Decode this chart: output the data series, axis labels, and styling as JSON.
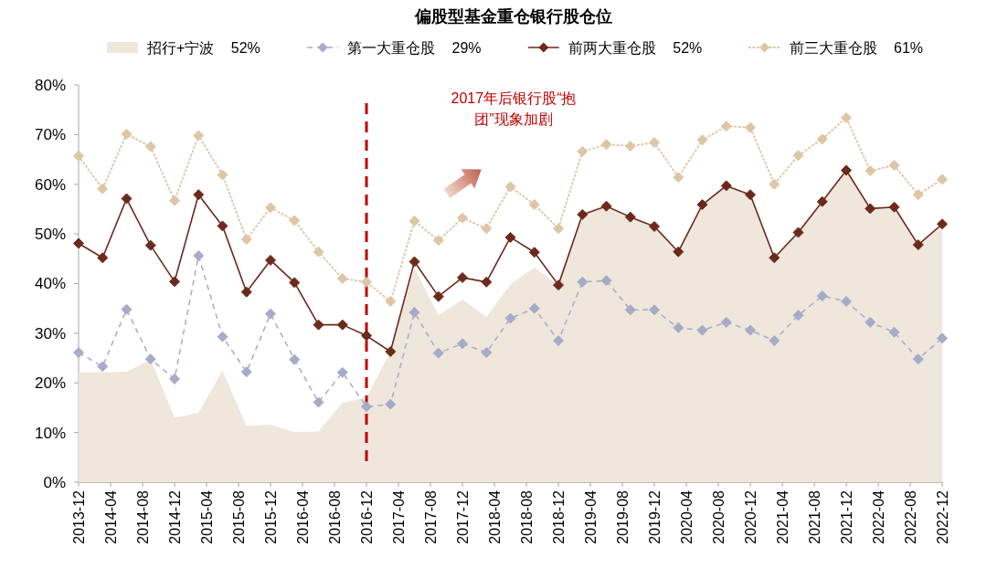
{
  "chart_data": {
    "type": "line",
    "title": "偏股型基金重仓银行股仓位",
    "x": [
      "2013-12",
      "2014-03",
      "2014-06",
      "2014-09",
      "2014-12",
      "2015-03",
      "2015-06",
      "2015-09",
      "2015-12",
      "2016-03",
      "2016-06",
      "2016-09",
      "2016-12",
      "2017-03",
      "2017-06",
      "2017-09",
      "2017-12",
      "2018-03",
      "2018-06",
      "2018-09",
      "2018-12",
      "2019-03",
      "2019-06",
      "2019-09",
      "2019-12",
      "2020-03",
      "2020-06",
      "2020-09",
      "2020-12",
      "2021-03",
      "2021-06",
      "2021-09",
      "2021-12",
      "2022-03",
      "2022-06",
      "2022-09",
      "2022-12"
    ],
    "series": [
      {
        "name": "招行+宁波 52%",
        "type": "area",
        "color": "#efe6dc",
        "values": [
          22.1,
          22.1,
          22.2,
          24.7,
          13.0,
          14.0,
          22.5,
          11.3,
          11.6,
          10.1,
          10.2,
          16.0,
          17.0,
          26.3,
          43.1,
          33.6,
          36.8,
          33.3,
          39.8,
          43.2,
          39.7,
          53.9,
          55.6,
          53.4,
          51.5,
          46.4,
          55.9,
          59.7,
          57.9,
          45.2,
          50.3,
          56.5,
          62.8,
          55.1,
          55.4,
          47.8,
          52.0
        ]
      },
      {
        "name": "第一大重仓股 29%",
        "color": "#a6abc8",
        "line_style": "dashed",
        "marker": "diamond",
        "values": [
          26.1,
          23.3,
          34.8,
          24.8,
          20.8,
          45.6,
          29.3,
          22.2,
          33.9,
          24.7,
          16.1,
          22.1,
          15.2,
          15.7,
          34.2,
          26.0,
          27.9,
          26.1,
          33.0,
          35.0,
          28.5,
          40.3,
          40.6,
          34.7,
          34.7,
          31.1,
          30.6,
          32.2,
          30.6,
          28.5,
          33.6,
          37.5,
          36.4,
          32.2,
          30.2,
          24.8,
          29.0
        ]
      },
      {
        "name": "前两大重仓股 52%",
        "color": "#6b2a1c",
        "line_style": "solid",
        "marker": "diamond",
        "values": [
          48.1,
          45.2,
          57.1,
          47.7,
          40.4,
          57.9,
          51.6,
          38.3,
          44.7,
          40.2,
          31.7,
          31.7,
          29.5,
          26.3,
          44.4,
          37.4,
          41.2,
          40.3,
          49.3,
          46.3,
          39.7,
          53.9,
          55.6,
          53.4,
          51.5,
          46.4,
          55.9,
          59.7,
          57.9,
          45.2,
          50.3,
          56.5,
          62.8,
          55.1,
          55.4,
          47.8,
          52.0
        ]
      },
      {
        "name": "前三大重仓股 61%",
        "color": "#dcc6a6",
        "line_style": "dotted",
        "marker": "diamond",
        "values": [
          65.7,
          59.1,
          70.1,
          67.6,
          56.7,
          69.8,
          61.9,
          48.9,
          55.3,
          52.7,
          46.4,
          41.0,
          40.3,
          36.4,
          52.6,
          48.7,
          53.2,
          51.1,
          59.5,
          55.9,
          51.1,
          66.6,
          68.0,
          67.7,
          68.4,
          61.4,
          68.9,
          71.7,
          71.4,
          60.0,
          65.8,
          69.1,
          73.4,
          62.7,
          63.8,
          57.9,
          61.0
        ]
      }
    ],
    "xlim": [
      "2013-12",
      "2022-12"
    ],
    "xticks": [
      "2013-12",
      "2014-04",
      "2014-08",
      "2014-12",
      "2015-04",
      "2015-08",
      "2015-12",
      "2016-04",
      "2016-08",
      "2016-12",
      "2017-04",
      "2017-08",
      "2017-12",
      "2018-04",
      "2018-08",
      "2018-12",
      "2019-04",
      "2019-08",
      "2019-12",
      "2020-04",
      "2020-08",
      "2020-12",
      "2021-04",
      "2021-08",
      "2021-12",
      "2022-04",
      "2022-08",
      "2022-12"
    ],
    "ylim": [
      0,
      80
    ],
    "yticks": [
      {
        "value": 0,
        "label": "0%"
      },
      {
        "value": 10,
        "label": "10%"
      },
      {
        "value": 20,
        "label": "20%"
      },
      {
        "value": 30,
        "label": "30%"
      },
      {
        "value": 40,
        "label": "40%"
      },
      {
        "value": 50,
        "label": "50%"
      },
      {
        "value": 60,
        "label": "60%"
      },
      {
        "value": 70,
        "label": "70%"
      },
      {
        "value": 80,
        "label": "80%"
      }
    ],
    "ref_lines": [
      {
        "axis": "x",
        "value": "2016-12",
        "color": "#c00000",
        "line_style": "dashed"
      }
    ],
    "annotations": [
      "2017年后银行股“抱团”现象加剧"
    ],
    "legend": "top"
  }
}
